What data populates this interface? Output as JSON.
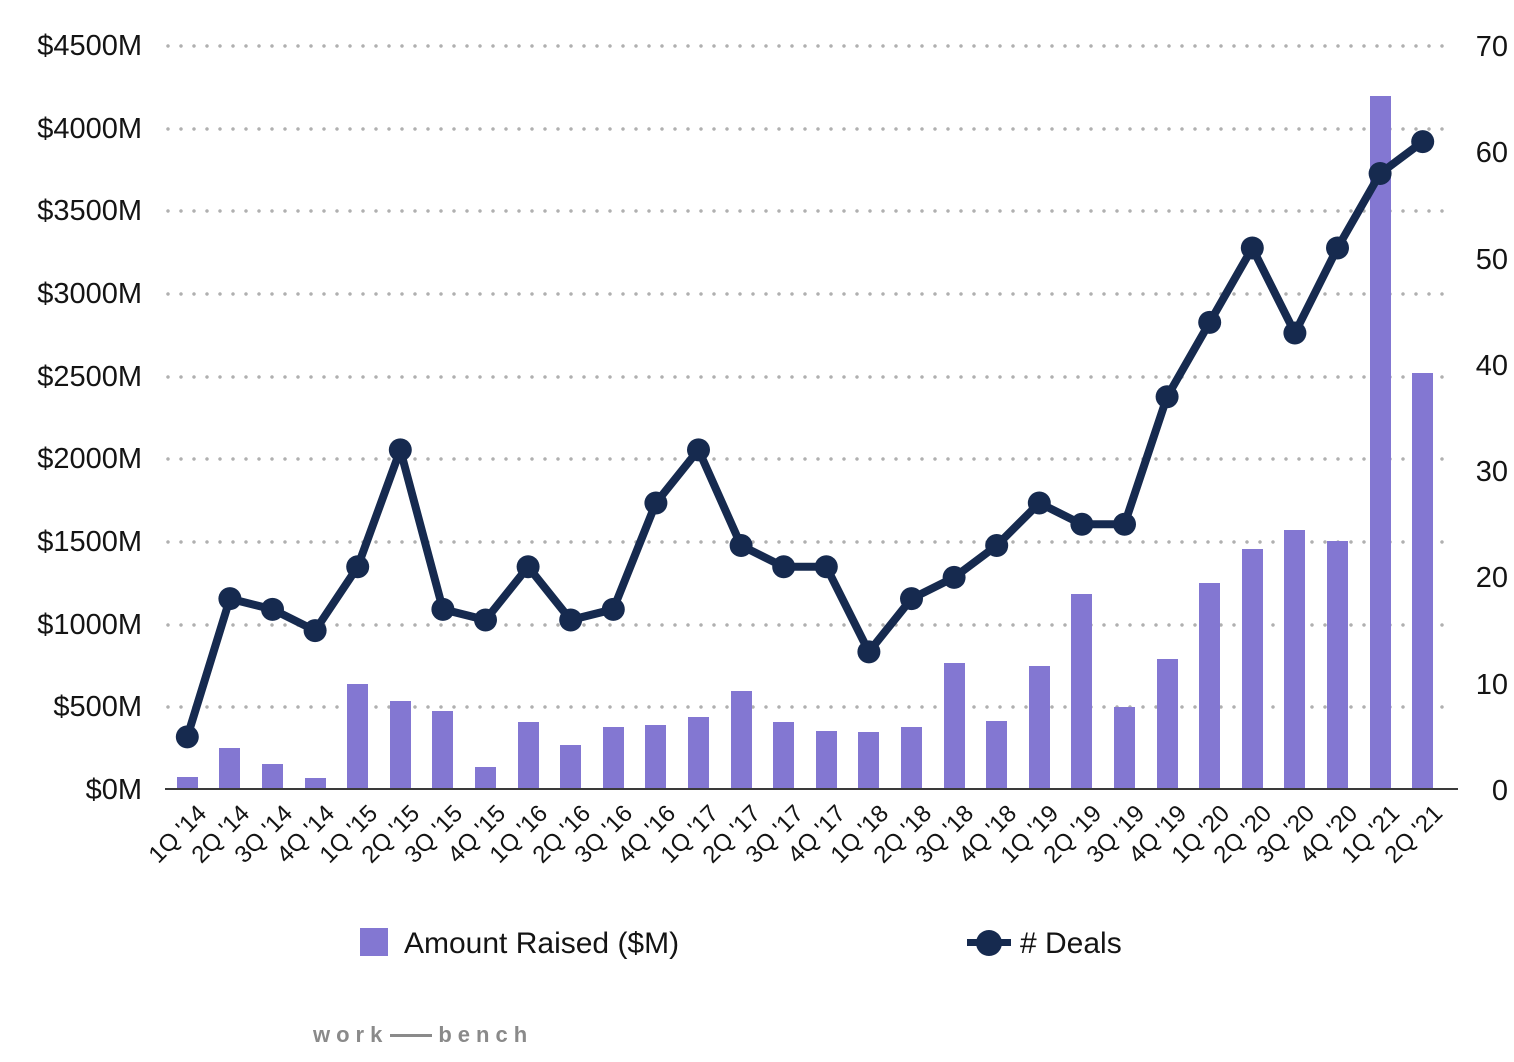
{
  "chart_data": {
    "type": "bar",
    "subtype": "combo-bar-line",
    "title": "",
    "categories": [
      "1Q '14",
      "2Q '14",
      "3Q '14",
      "4Q '14",
      "1Q '15",
      "2Q '15",
      "3Q '15",
      "4Q '15",
      "1Q '16",
      "2Q '16",
      "3Q '16",
      "4Q '16",
      "1Q '17",
      "2Q '17",
      "3Q '17",
      "4Q '17",
      "1Q '18",
      "2Q '18",
      "3Q '18",
      "4Q '18",
      "1Q '19",
      "2Q '19",
      "3Q '19",
      "4Q '19",
      "1Q '20",
      "2Q '20",
      "3Q '20",
      "4Q '20",
      "1Q '21",
      "2Q '21"
    ],
    "series": [
      {
        "name": "Amount Raised ($M)",
        "type": "bar",
        "axis": "left",
        "values": [
          80,
          255,
          160,
          75,
          640,
          540,
          480,
          140,
          410,
          275,
          380,
          395,
          440,
          600,
          410,
          355,
          350,
          380,
          770,
          415,
          750,
          1185,
          505,
          795,
          1250,
          1460,
          1575,
          1505,
          4200,
          2520
        ]
      },
      {
        "name": "# Deals",
        "type": "line",
        "axis": "right",
        "values": [
          5,
          18,
          17,
          15,
          21,
          32,
          17,
          16,
          21,
          16,
          17,
          27,
          32,
          23,
          21,
          21,
          13,
          18,
          20,
          23,
          27,
          25,
          25,
          37,
          44,
          51,
          43,
          51,
          58,
          61
        ]
      }
    ],
    "left_axis": {
      "min": 0,
      "max": 4500,
      "step": 500,
      "tick_labels": [
        "$0M",
        "$500M",
        "$1000M",
        "$1500M",
        "$2000M",
        "$2500M",
        "$3000M",
        "$3500M",
        "$4000M",
        "$4500M"
      ]
    },
    "right_axis": {
      "min": 0,
      "max": 70,
      "step": 10,
      "tick_labels": [
        "0",
        "10",
        "20",
        "30",
        "40",
        "50",
        "60",
        "70"
      ]
    },
    "grid": "horizontal dotted gridlines at left-axis ticks, solid baseline",
    "legend_position": "bottom"
  },
  "legend": {
    "amount_label": "Amount Raised ($M)",
    "deals_label": "# Deals"
  },
  "branding": {
    "logo_left": "work",
    "logo_right": "bench"
  },
  "colors": {
    "bar": "#8377d2",
    "line": "#162a4f",
    "grid_dot": "#b0b0b0",
    "axis_text": "#141414",
    "baseline": "#3a3a3a",
    "logo": "#8a8a8a"
  }
}
